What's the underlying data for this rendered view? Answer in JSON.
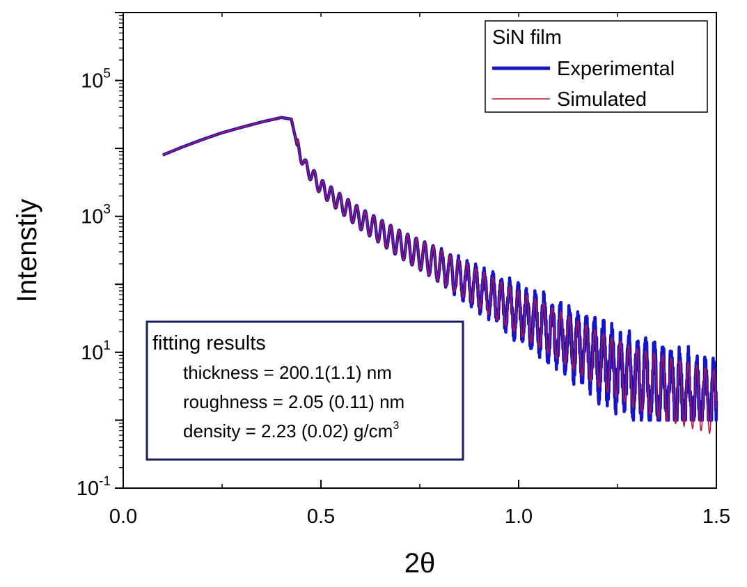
{
  "chart_data": {
    "type": "line",
    "title": "",
    "xlabel": "2θ",
    "ylabel": "Intenstiy",
    "yscale": "log",
    "xlim": [
      0.0,
      1.5
    ],
    "ylim": [
      0.1,
      1000000
    ],
    "x_ticks": [
      {
        "value": 0.0,
        "label": "0.0"
      },
      {
        "value": 0.5,
        "label": "0.5"
      },
      {
        "value": 1.0,
        "label": "1.0"
      },
      {
        "value": 1.5,
        "label": "1.5"
      }
    ],
    "y_ticks": [
      {
        "value": 0.1,
        "base": "10",
        "exp": "-1"
      },
      {
        "value": 10,
        "base": "10",
        "exp": "1"
      },
      {
        "value": 1000,
        "base": "10",
        "exp": "3"
      },
      {
        "value": 100000,
        "base": "10",
        "exp": "5"
      }
    ],
    "series": [
      {
        "name": "Experimental",
        "color": "#1414c8",
        "x": [
          0.1,
          0.15,
          0.2,
          0.25,
          0.3,
          0.35,
          0.4,
          0.425,
          0.44,
          0.46,
          0.5,
          0.55,
          0.6,
          0.7,
          0.8,
          0.9,
          1.0,
          1.1,
          1.2,
          1.3,
          1.4,
          1.5
        ],
        "y": [
          8000,
          10500,
          13500,
          17000,
          20500,
          24500,
          28500,
          27000,
          11000,
          5500,
          2700,
          1550,
          920,
          390,
          190,
          85,
          38,
          18,
          8,
          4,
          2.6,
          1.8
        ]
      },
      {
        "name": "Simulated",
        "color": "#c0143c",
        "x": [
          0.1,
          0.15,
          0.2,
          0.25,
          0.3,
          0.35,
          0.4,
          0.425,
          0.44,
          0.46,
          0.5,
          0.55,
          0.6,
          0.7,
          0.8,
          0.9,
          1.0,
          1.1,
          1.2,
          1.3,
          1.4,
          1.5
        ],
        "y": [
          8000,
          10500,
          13500,
          17000,
          20500,
          24500,
          28500,
          27000,
          11000,
          5500,
          2700,
          1550,
          920,
          390,
          190,
          85,
          38,
          18,
          8,
          4,
          2.6,
          1.8
        ]
      }
    ],
    "legend": {
      "title": "SiN film",
      "position": "top-right"
    },
    "annotation": {
      "title": "fitting results",
      "lines": [
        "thickness = 200.1(1.1) nm",
        "roughness = 2.05 (0.11) nm"
      ],
      "density_text": "density = 2.23 (0.02) g/cm",
      "density_sup": "3"
    },
    "colors": {
      "experimental": "#1414c8",
      "simulated": "#c0143c",
      "annotation_border": "#1a1a5e"
    }
  }
}
